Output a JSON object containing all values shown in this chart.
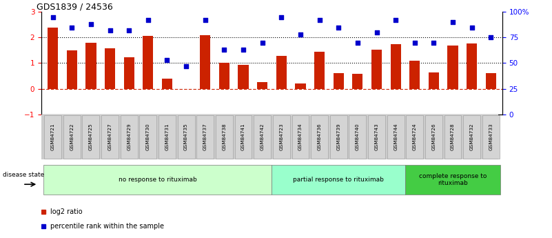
{
  "title": "GDS1839 / 24536",
  "samples": [
    "GSM84721",
    "GSM84722",
    "GSM84725",
    "GSM84727",
    "GSM84729",
    "GSM84730",
    "GSM84731",
    "GSM84735",
    "GSM84737",
    "GSM84738",
    "GSM84741",
    "GSM84742",
    "GSM84723",
    "GSM84734",
    "GSM84736",
    "GSM84739",
    "GSM84740",
    "GSM84743",
    "GSM84744",
    "GSM84724",
    "GSM84726",
    "GSM84728",
    "GSM84732",
    "GSM84733"
  ],
  "log2_ratio": [
    2.4,
    1.5,
    1.78,
    1.58,
    1.22,
    2.07,
    0.4,
    -0.02,
    2.1,
    1.0,
    0.93,
    0.25,
    1.28,
    0.2,
    1.45,
    0.6,
    0.58,
    1.52,
    1.73,
    1.1,
    0.63,
    1.68,
    1.77,
    0.62
  ],
  "percentile": [
    95,
    85,
    88,
    82,
    82,
    92,
    53,
    47,
    92,
    63,
    63,
    70,
    95,
    78,
    92,
    85,
    70,
    80,
    92,
    70,
    70,
    90,
    85,
    75
  ],
  "groups": [
    {
      "label": "no response to rituximab",
      "start": 0,
      "end": 12,
      "color": "#ccffcc"
    },
    {
      "label": "partial response to rituximab",
      "start": 12,
      "end": 19,
      "color": "#99ffcc"
    },
    {
      "label": "complete response to\nrituximab",
      "start": 19,
      "end": 24,
      "color": "#44cc44"
    }
  ],
  "bar_color": "#cc2200",
  "dot_color": "#0000cc",
  "bar_width": 0.55,
  "ylim_left": [
    -1,
    3
  ],
  "ylim_right": [
    0,
    100
  ],
  "yticks_left": [
    -1,
    0,
    1,
    2,
    3
  ],
  "yticks_right": [
    0,
    25,
    50,
    75,
    100
  ],
  "disease_state_label": "disease state",
  "legend_bar_label": "log2 ratio",
  "legend_dot_label": "percentile rank within the sample",
  "background_color": "#ffffff"
}
